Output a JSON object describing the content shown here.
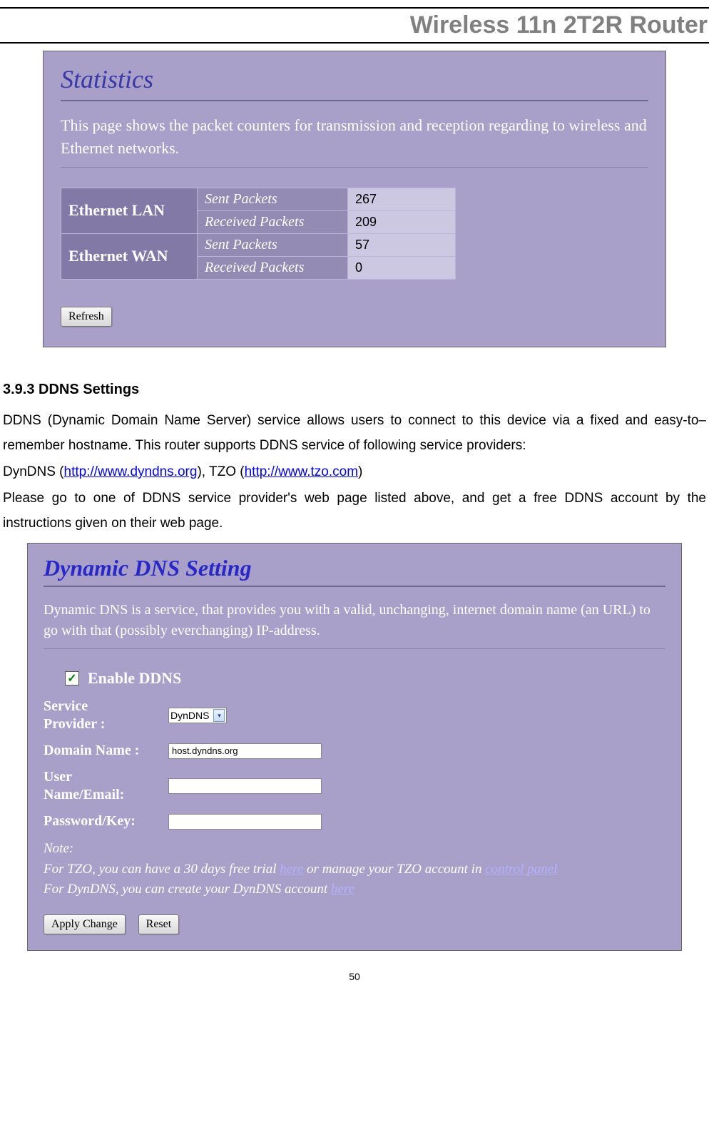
{
  "doc_header": "Wireless 11n 2T2R Router",
  "page_number": "50",
  "statistics_panel": {
    "title": "Statistics",
    "description": "This page shows the packet counters for transmission and reception regarding to wireless and Ethernet networks.",
    "sections": [
      {
        "name": "Ethernet LAN",
        "rows": [
          {
            "label": "Sent Packets",
            "value": "267"
          },
          {
            "label": "Received Packets",
            "value": "209"
          }
        ]
      },
      {
        "name": "Ethernet WAN",
        "rows": [
          {
            "label": "Sent Packets",
            "value": "57"
          },
          {
            "label": "Received Packets",
            "value": "0"
          }
        ]
      }
    ],
    "refresh_button": "Refresh"
  },
  "section_393": {
    "heading": "3.9.3   DDNS Settings",
    "para1_pre": "DDNS (Dynamic Domain Name Server) service allows users to connect to this device via a fixed and easy-to–remember hostname. This router supports DDNS service of following service providers:",
    "para2_a": "DynDNS (",
    "para2_link1": "http://www.dyndns.org",
    "para2_b": "), TZO (",
    "para2_link2": "http://www.tzo.com",
    "para2_c": ")",
    "para3": "Please go to one of DDNS service provider's web page listed above, and get a free DDNS account by the instructions given on their web page."
  },
  "ddns_panel": {
    "title": "Dynamic DNS   Setting",
    "description": "Dynamic DNS is a service, that provides you with a valid, unchanging, internet domain name (an URL) to go with that (possibly everchanging) IP-address.",
    "enable_label": "Enable DDNS",
    "enable_checked": true,
    "fields": {
      "provider_label": "Service Provider :",
      "provider_value": "DynDNS",
      "domain_label": "Domain Name :",
      "domain_value": "host.dyndns.org",
      "user_label": "User Name/Email:",
      "user_value": "",
      "pass_label": "Password/Key:",
      "pass_value": ""
    },
    "note_label": "Note:",
    "note_line1_a": "For TZO, you can have a 30 days free trial ",
    "note_line1_link1": "here",
    "note_line1_b": " or manage your TZO account in ",
    "note_line1_link2": "control panel",
    "note_line2_a": "For DynDNS, you can create your DynDNS account ",
    "note_line2_link": "here",
    "apply_button": "Apply Change",
    "reset_button": "Reset"
  },
  "colors": {
    "panel_bg": "#a8a0c8",
    "title_blue": "#3838a8",
    "dark_cell": "#8279a6",
    "mid_cell": "#938bb3",
    "light_cell": "#ccc8e2",
    "header_gray": "#808080"
  }
}
